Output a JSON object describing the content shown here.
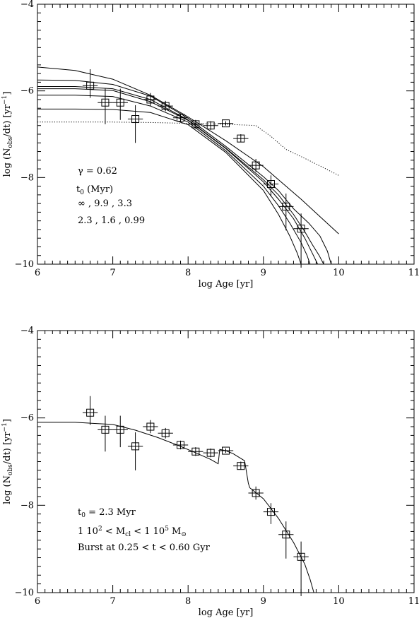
{
  "chart_data": [
    {
      "type": "line",
      "xlabel": "log Age [yr]",
      "ylabel": {
        "pre": "log (N",
        "sub": "obs",
        "mid": "/dt)   [yr",
        "sup": "−1",
        "post": "]"
      },
      "xlim": [
        6,
        11
      ],
      "ylim": [
        -10,
        -4
      ],
      "xticks": [
        6,
        7,
        8,
        9,
        10,
        11
      ],
      "yticks": [
        -10,
        -8,
        -6,
        -4
      ],
      "annotations": [
        {
          "text": "γ = 0.62"
        },
        {
          "pre": "t",
          "sub": "0",
          "post": "   (Myr)"
        },
        {
          "text": "∞ ,     9.9  ,   3.3"
        },
        {
          "text": "2.3  ,   1.6  ,   0.99"
        }
      ],
      "points": [
        {
          "x": 6.7,
          "y": -5.88,
          "xerr": 0.1,
          "yerr": [
            0.28,
            0.38
          ]
        },
        {
          "x": 6.9,
          "y": -6.27,
          "xerr": 0.1,
          "yerr": [
            0.5,
            0.32
          ]
        },
        {
          "x": 7.1,
          "y": -6.27,
          "xerr": 0.1,
          "yerr": [
            0.4,
            0.32
          ]
        },
        {
          "x": 7.3,
          "y": -6.65,
          "xerr": 0.1,
          "yerr": [
            0.55,
            0.32
          ]
        },
        {
          "x": 7.5,
          "y": -6.2,
          "xerr": 0.1,
          "yerr": [
            0.15,
            0.15
          ]
        },
        {
          "x": 7.7,
          "y": -6.35,
          "xerr": 0.1,
          "yerr": [
            0.12,
            0.12
          ]
        },
        {
          "x": 7.9,
          "y": -6.62,
          "xerr": 0.1,
          "yerr": [
            0.1,
            0.1
          ]
        },
        {
          "x": 8.1,
          "y": -6.77,
          "xerr": 0.1,
          "yerr": [
            0.1,
            0.1
          ]
        },
        {
          "x": 8.3,
          "y": -6.8,
          "xerr": 0.1,
          "yerr": [
            0.1,
            0.1
          ]
        },
        {
          "x": 8.5,
          "y": -6.75,
          "xerr": 0.1,
          "yerr": [
            0.05,
            0.05
          ]
        },
        {
          "x": 8.7,
          "y": -7.1,
          "xerr": 0.1,
          "yerr": [
            0.08,
            0.1
          ]
        },
        {
          "x": 8.9,
          "y": -7.72,
          "xerr": 0.1,
          "yerr": [
            0.15,
            0.15
          ]
        },
        {
          "x": 9.1,
          "y": -8.15,
          "xerr": 0.1,
          "yerr": [
            0.28,
            0.2
          ]
        },
        {
          "x": 9.3,
          "y": -8.67,
          "xerr": 0.1,
          "yerr": [
            0.55,
            0.3
          ]
        },
        {
          "x": 9.5,
          "y": -9.18,
          "xerr": 0.1,
          "yerr": [
            0.9,
            0.35
          ]
        }
      ],
      "series": [
        {
          "style": "solid",
          "x": [
            6,
            6.5,
            7,
            7.5,
            8,
            8.5,
            9,
            9.5,
            10
          ],
          "y": [
            -5.45,
            -5.53,
            -5.73,
            -6.1,
            -6.6,
            -7.15,
            -7.75,
            -8.5,
            -9.3
          ]
        },
        {
          "style": "solid",
          "x": [
            6,
            6.5,
            7,
            7.5,
            8,
            8.5,
            9,
            9.2,
            9.4,
            9.6,
            9.75,
            9.85,
            9.9
          ],
          "y": [
            -5.75,
            -5.76,
            -5.85,
            -6.12,
            -6.63,
            -7.28,
            -7.98,
            -8.3,
            -8.72,
            -9.05,
            -9.35,
            -9.7,
            -10
          ]
        },
        {
          "style": "solid",
          "x": [
            6,
            6.5,
            7,
            7.5,
            8,
            8.5,
            9,
            9.2,
            9.4,
            9.55,
            9.65,
            9.74,
            9.8
          ],
          "y": [
            -5.9,
            -5.9,
            -5.95,
            -6.2,
            -6.67,
            -7.32,
            -8.05,
            -8.4,
            -8.85,
            -9.25,
            -9.55,
            -9.8,
            -10
          ]
        },
        {
          "style": "solid",
          "x": [
            6,
            6.5,
            7,
            7.5,
            8,
            8.5,
            9,
            9.2,
            9.4,
            9.55,
            9.65,
            9.72
          ],
          "y": [
            -5.95,
            -5.95,
            -5.99,
            -6.25,
            -6.68,
            -7.33,
            -8.1,
            -8.5,
            -8.95,
            -9.4,
            -9.75,
            -10
          ]
        },
        {
          "style": "solid",
          "x": [
            6,
            6.5,
            7,
            7.5,
            8,
            8.5,
            9,
            9.2,
            9.35,
            9.5,
            9.58,
            9.62
          ],
          "y": [
            -6.1,
            -6.1,
            -6.13,
            -6.35,
            -6.72,
            -7.38,
            -8.2,
            -8.65,
            -9.05,
            -9.5,
            -9.8,
            -10
          ]
        },
        {
          "style": "solid",
          "x": [
            6,
            6.5,
            7,
            7.5,
            8,
            8.5,
            9,
            9.2,
            9.35,
            9.45,
            9.5
          ],
          "y": [
            -6.42,
            -6.42,
            -6.43,
            -6.5,
            -6.78,
            -7.42,
            -8.3,
            -8.85,
            -9.35,
            -9.75,
            -10
          ]
        },
        {
          "style": "dotted",
          "x": [
            6,
            6.5,
            7,
            7.5,
            8,
            8.5,
            8.9,
            9.1,
            9.3,
            9.6,
            10
          ],
          "y": [
            -6.72,
            -6.72,
            -6.72,
            -6.73,
            -6.75,
            -6.77,
            -6.8,
            -7.05,
            -7.35,
            -7.6,
            -7.95
          ]
        }
      ]
    },
    {
      "type": "line",
      "xlabel": "log Age [yr]",
      "ylabel": {
        "pre": "log (N",
        "sub": "obs",
        "mid": "/dt)   [yr",
        "sup": "−1",
        "post": "]"
      },
      "xlim": [
        6,
        11
      ],
      "ylim": [
        -10,
        -4
      ],
      "xticks": [
        6,
        7,
        8,
        9,
        10,
        11
      ],
      "yticks": [
        -10,
        -8,
        -6,
        -4
      ],
      "annotations": [
        {
          "pre": "t",
          "sub": "0",
          "post": " = 2.3 Myr"
        },
        {
          "pre": "1 10",
          "sup": "2",
          "mid": " < M",
          "sub": "cl",
          "mid2": " < 1 10",
          "sup2": "5",
          "post": " M",
          "sub2": "⊙"
        },
        {
          "text": "Burst at 0.25 < t < 0.60 Gyr"
        }
      ],
      "points": [
        {
          "x": 6.7,
          "y": -5.88,
          "xerr": 0.1,
          "yerr": [
            0.28,
            0.38
          ]
        },
        {
          "x": 6.9,
          "y": -6.27,
          "xerr": 0.1,
          "yerr": [
            0.5,
            0.32
          ]
        },
        {
          "x": 7.1,
          "y": -6.27,
          "xerr": 0.1,
          "yerr": [
            0.4,
            0.32
          ]
        },
        {
          "x": 7.3,
          "y": -6.65,
          "xerr": 0.1,
          "yerr": [
            0.55,
            0.32
          ]
        },
        {
          "x": 7.5,
          "y": -6.2,
          "xerr": 0.1,
          "yerr": [
            0.15,
            0.15
          ]
        },
        {
          "x": 7.7,
          "y": -6.35,
          "xerr": 0.1,
          "yerr": [
            0.12,
            0.12
          ]
        },
        {
          "x": 7.9,
          "y": -6.62,
          "xerr": 0.1,
          "yerr": [
            0.1,
            0.1
          ]
        },
        {
          "x": 8.1,
          "y": -6.77,
          "xerr": 0.1,
          "yerr": [
            0.1,
            0.1
          ]
        },
        {
          "x": 8.3,
          "y": -6.8,
          "xerr": 0.1,
          "yerr": [
            0.1,
            0.1
          ]
        },
        {
          "x": 8.5,
          "y": -6.75,
          "xerr": 0.1,
          "yerr": [
            0.05,
            0.05
          ]
        },
        {
          "x": 8.7,
          "y": -7.1,
          "xerr": 0.1,
          "yerr": [
            0.08,
            0.1
          ]
        },
        {
          "x": 8.9,
          "y": -7.72,
          "xerr": 0.1,
          "yerr": [
            0.15,
            0.15
          ]
        },
        {
          "x": 9.1,
          "y": -8.15,
          "xerr": 0.1,
          "yerr": [
            0.28,
            0.2
          ]
        },
        {
          "x": 9.3,
          "y": -8.67,
          "xerr": 0.1,
          "yerr": [
            0.55,
            0.3
          ]
        },
        {
          "x": 9.5,
          "y": -9.18,
          "xerr": 0.1,
          "yerr": [
            0.9,
            0.35
          ]
        }
      ],
      "series": [
        {
          "style": "solid",
          "x": [
            6,
            6.5,
            7,
            7.3,
            7.6,
            7.9,
            8.1,
            8.3,
            8.4,
            8.42,
            8.5,
            8.6,
            8.75,
            8.8,
            8.82,
            9.0,
            9.2,
            9.4,
            9.55,
            9.62,
            9.67
          ],
          "y": [
            -6.1,
            -6.1,
            -6.15,
            -6.28,
            -6.45,
            -6.65,
            -6.8,
            -6.95,
            -7.05,
            -6.72,
            -6.75,
            -6.82,
            -6.98,
            -7.5,
            -7.6,
            -7.85,
            -8.3,
            -8.85,
            -9.35,
            -9.7,
            -10
          ]
        }
      ]
    }
  ]
}
